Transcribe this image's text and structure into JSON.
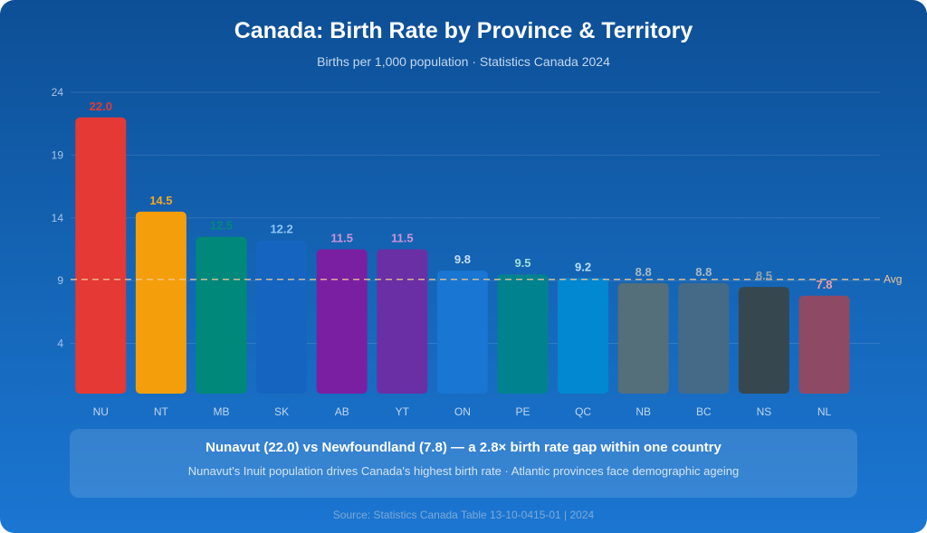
{
  "header": {
    "title": "Canada: Birth Rate by Province & Territory",
    "subtitle": "Births per 1,000 population · Statistics Canada 2024"
  },
  "note": {
    "headline": "Nunavut (22.0) vs Newfoundland (7.8) — a 2.8× birth rate gap within one country",
    "detail": "Nunavut's Inuit population drives Canada's highest birth rate · Atlantic provinces face demographic ageing"
  },
  "footer": {
    "source": "Source: Statistics Canada Table 13-10-0415-01 | 2024"
  },
  "chart_data": {
    "type": "bar",
    "title": "Canada: Birth Rate by Province & Territory",
    "subtitle": "Births per 1,000 population · Statistics Canada 2024",
    "xlabel": "",
    "ylabel": "",
    "ylim": [
      0,
      24
    ],
    "yticks": [
      4,
      9,
      14,
      19,
      24
    ],
    "grid": true,
    "categories": [
      "NU",
      "NT",
      "MB",
      "SK",
      "AB",
      "YT",
      "ON",
      "PE",
      "QC",
      "NB",
      "BC",
      "NS",
      "NL"
    ],
    "values": [
      22.0,
      14.5,
      12.5,
      12.2,
      11.5,
      11.5,
      9.8,
      9.5,
      9.2,
      8.8,
      8.8,
      8.5,
      7.8
    ],
    "value_labels": [
      "22.0",
      "14.5",
      "12.5",
      "12.2",
      "11.5",
      "11.5",
      "9.8",
      "9.5",
      "9.2",
      "8.8",
      "8.8",
      "8.5",
      "7.8"
    ],
    "bar_colors": [
      "#e53935",
      "#f59e0b",
      "#00897b",
      "#1565c0",
      "#7b1fa2",
      "#6a2fa5",
      "#1976d2",
      "#00838f",
      "#0288d1",
      "#546e7a",
      "#456a87",
      "#37474f",
      "#8e4a64"
    ],
    "label_colors": [
      "#e53935",
      "#f5a623",
      "#00897b",
      "#8ec6f5",
      "#ce93d8",
      "#ce93d8",
      "#c9def5",
      "#9ee0d6",
      "#b8e0fa",
      "#aab9c4",
      "#aab9c4",
      "#94a3ad",
      "#f39aa4"
    ],
    "reference_line": {
      "value": 9.1,
      "label": "Avg",
      "color": "#f0c898",
      "style": "dashed"
    }
  }
}
